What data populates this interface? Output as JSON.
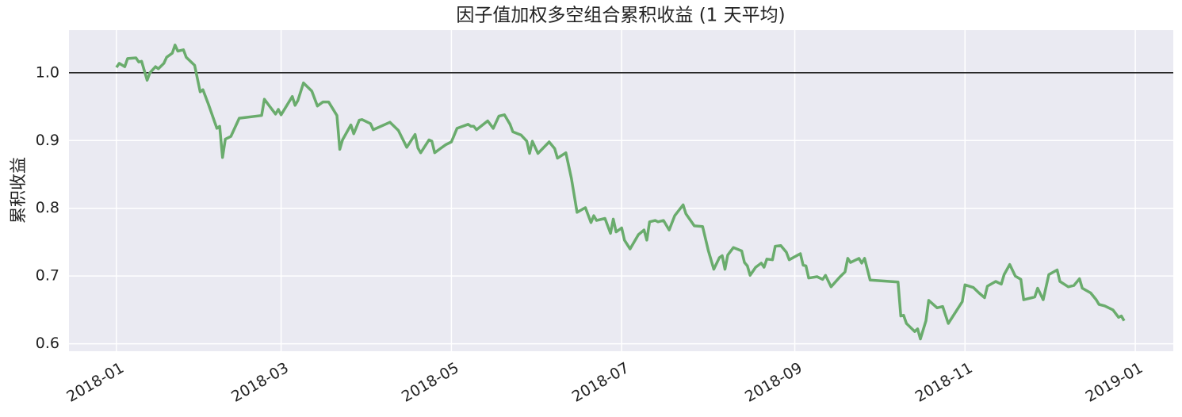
{
  "chart_data": {
    "type": "line",
    "title": "因子值加权多空组合累积收益 (1 天平均)",
    "y_label": "累积收益",
    "x": [
      0,
      1,
      3,
      4,
      7,
      8,
      9,
      11,
      12,
      14,
      15,
      17,
      18,
      20,
      21,
      22,
      24,
      25,
      28,
      30,
      31,
      33,
      36,
      37,
      38,
      39,
      41,
      44,
      52,
      53,
      55,
      57,
      58,
      59,
      63,
      64,
      65,
      67,
      70,
      72,
      74,
      76,
      79,
      80,
      81,
      84,
      85,
      87,
      88,
      91,
      92,
      98,
      101,
      104,
      107,
      108,
      109,
      112,
      113,
      114,
      116,
      118,
      120,
      122,
      126,
      127,
      128,
      129,
      133,
      135,
      137,
      139,
      141,
      142,
      145,
      147,
      148,
      149,
      151,
      155,
      157,
      158,
      161,
      162,
      163,
      165,
      168,
      170,
      171,
      172,
      175,
      177,
      178,
      179,
      181,
      182,
      184,
      185,
      187,
      189,
      190,
      191,
      193,
      194,
      196,
      198,
      200,
      203,
      204,
      207,
      210,
      212,
      214,
      216,
      217,
      218,
      219,
      221,
      224,
      225,
      226,
      227,
      229,
      231,
      232,
      233,
      235,
      236,
      238,
      240,
      241,
      245,
      246,
      247,
      248,
      251,
      253,
      254,
      256,
      259,
      261,
      262,
      263,
      266,
      267,
      268,
      270,
      280,
      281,
      282,
      283,
      286,
      287,
      288,
      290,
      291,
      294,
      296,
      298,
      303,
      304,
      307,
      309,
      311,
      312,
      315,
      317,
      318,
      320,
      322,
      324,
      325,
      328,
      329,
      330,
      332,
      334,
      337,
      338,
      341,
      343,
      345,
      346,
      349,
      351,
      352,
      354,
      357,
      359,
      360,
      361
    ],
    "values": [
      1.008,
      1.014,
      1.009,
      1.021,
      1.022,
      1.016,
      1.017,
      0.989,
      1.0,
      1.009,
      1.006,
      1.014,
      1.023,
      1.029,
      1.041,
      1.032,
      1.034,
      1.023,
      1.011,
      0.972,
      0.975,
      0.953,
      0.918,
      0.921,
      0.875,
      0.902,
      0.906,
      0.933,
      0.937,
      0.961,
      0.95,
      0.939,
      0.946,
      0.938,
      0.965,
      0.952,
      0.959,
      0.985,
      0.973,
      0.951,
      0.957,
      0.957,
      0.937,
      0.887,
      0.901,
      0.923,
      0.91,
      0.93,
      0.931,
      0.925,
      0.916,
      0.927,
      0.915,
      0.89,
      0.909,
      0.889,
      0.882,
      0.901,
      0.899,
      0.882,
      0.888,
      0.894,
      0.898,
      0.918,
      0.924,
      0.921,
      0.921,
      0.916,
      0.929,
      0.918,
      0.936,
      0.938,
      0.924,
      0.913,
      0.908,
      0.899,
      0.881,
      0.899,
      0.881,
      0.898,
      0.888,
      0.874,
      0.882,
      0.863,
      0.844,
      0.794,
      0.801,
      0.779,
      0.789,
      0.782,
      0.785,
      0.763,
      0.784,
      0.765,
      0.771,
      0.753,
      0.74,
      0.747,
      0.761,
      0.768,
      0.753,
      0.78,
      0.782,
      0.78,
      0.782,
      0.768,
      0.789,
      0.805,
      0.792,
      0.774,
      0.773,
      0.738,
      0.71,
      0.727,
      0.73,
      0.71,
      0.731,
      0.742,
      0.737,
      0.72,
      0.715,
      0.701,
      0.713,
      0.719,
      0.713,
      0.725,
      0.724,
      0.744,
      0.745,
      0.735,
      0.724,
      0.733,
      0.716,
      0.715,
      0.697,
      0.699,
      0.695,
      0.701,
      0.684,
      0.698,
      0.706,
      0.726,
      0.72,
      0.726,
      0.719,
      0.726,
      0.694,
      0.691,
      0.641,
      0.642,
      0.63,
      0.618,
      0.622,
      0.607,
      0.634,
      0.664,
      0.653,
      0.655,
      0.63,
      0.662,
      0.687,
      0.683,
      0.675,
      0.668,
      0.685,
      0.692,
      0.688,
      0.702,
      0.717,
      0.7,
      0.695,
      0.665,
      0.668,
      0.669,
      0.682,
      0.665,
      0.702,
      0.709,
      0.692,
      0.684,
      0.686,
      0.696,
      0.682,
      0.675,
      0.665,
      0.658,
      0.656,
      0.65,
      0.639,
      0.641,
      0.634
    ],
    "color": "#6aac6d",
    "hline": 1.0,
    "hline_color": "#000000",
    "xlim": [
      -17,
      378.6
    ],
    "xticks": [
      {
        "value": 0,
        "label": "2018-01"
      },
      {
        "value": 59,
        "label": "2018-03"
      },
      {
        "value": 120,
        "label": "2018-05"
      },
      {
        "value": 181,
        "label": "2018-07"
      },
      {
        "value": 243,
        "label": "2018-09"
      },
      {
        "value": 304,
        "label": "2018-11"
      },
      {
        "value": 365,
        "label": "2019-01"
      }
    ],
    "ylim": [
      0.589,
      1.063
    ],
    "yticks": [
      0.6,
      0.7,
      0.8,
      0.9,
      {
        "value": 1.0,
        "label": "1.0"
      }
    ],
    "grid": true
  }
}
